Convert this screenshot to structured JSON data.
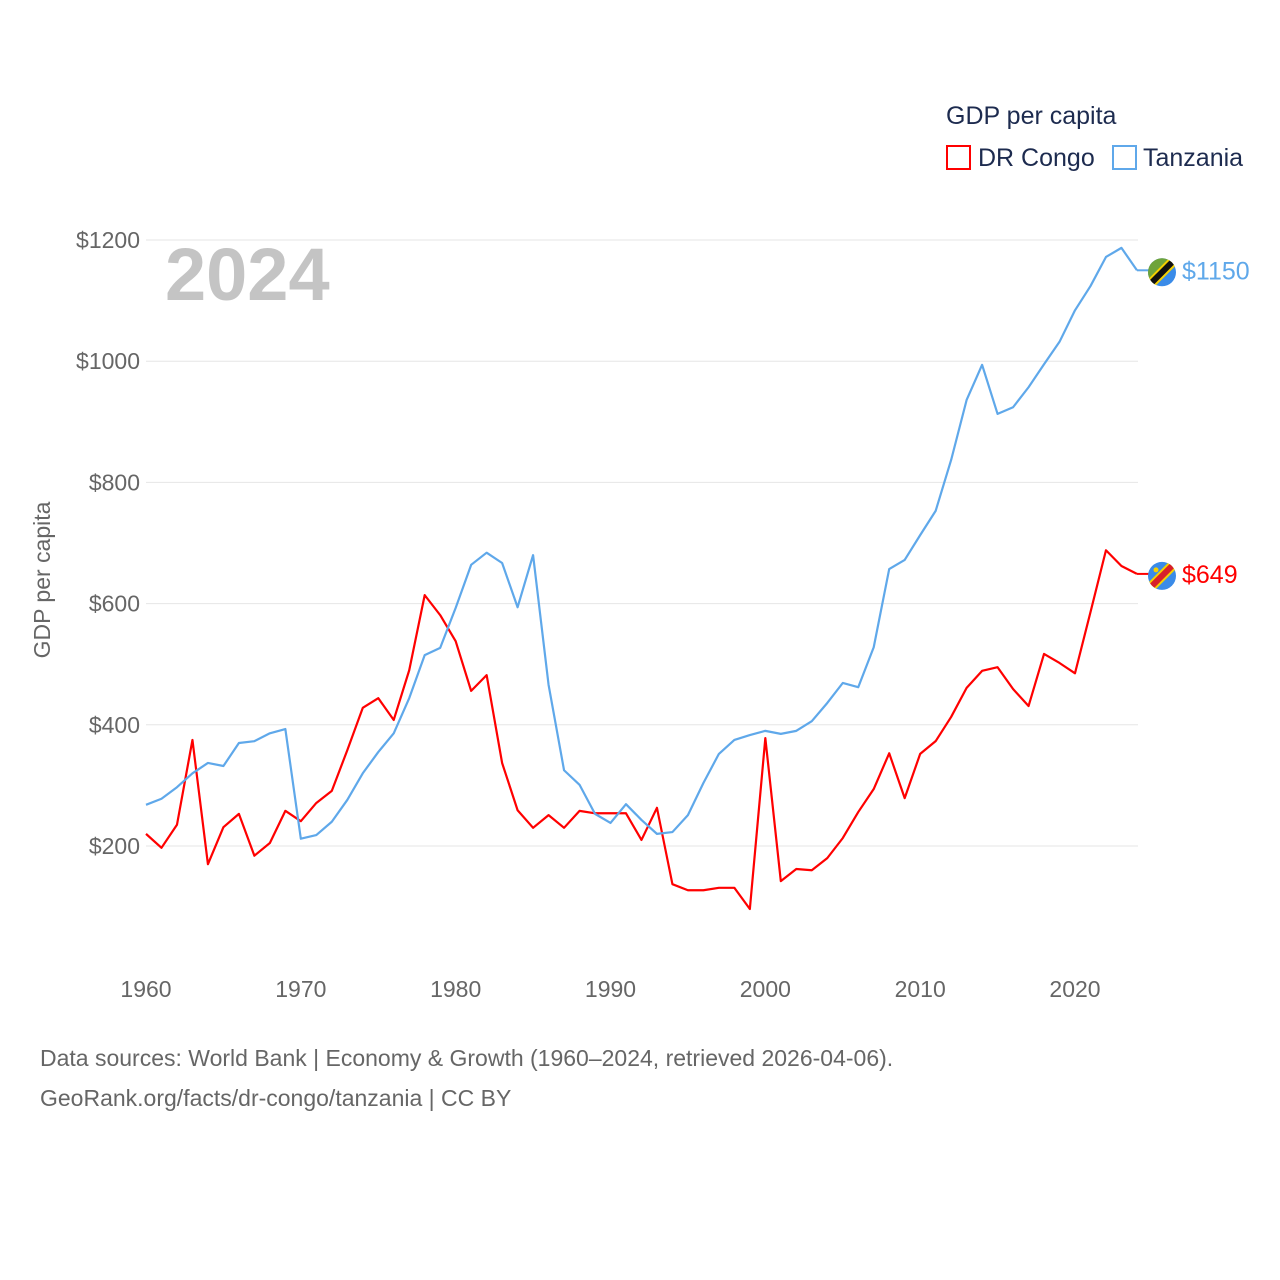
{
  "chart_data": {
    "type": "line",
    "title": "GDP per capita",
    "year_label": "2024",
    "xlabel": "",
    "ylabel": "GDP per capita",
    "xlim": [
      1960,
      2024
    ],
    "ylim": [
      0,
      1250
    ],
    "x_ticks": [
      1960,
      1970,
      1980,
      1990,
      2000,
      2010,
      2020
    ],
    "x_tick_labels": [
      "1960",
      "1970",
      "1980",
      "1990",
      "2000",
      "2010",
      "2020"
    ],
    "y_ticks": [
      200,
      400,
      600,
      800,
      1000,
      1200
    ],
    "y_tick_labels": [
      "$200",
      "$400",
      "$600",
      "$800",
      "$1000",
      "$1200"
    ],
    "grid": true,
    "legend_placement": "top-right",
    "x_start": 1960,
    "series": [
      {
        "name": "DR Congo",
        "color": "#ff0000",
        "end_label": "$649",
        "values": [
          220,
          197,
          235,
          375,
          170,
          231,
          253,
          184,
          205,
          258,
          241,
          271,
          291,
          358,
          428,
          444,
          408,
          490,
          614,
          581,
          538,
          456,
          482,
          337,
          259,
          230,
          251,
          230,
          258,
          254,
          254,
          254,
          210,
          263,
          137,
          127,
          127,
          131,
          131,
          96,
          378,
          142,
          162,
          160,
          180,
          213,
          256,
          294,
          353,
          279,
          352,
          373,
          413,
          461,
          489,
          495,
          459,
          431,
          517,
          502,
          485,
          586,
          688,
          662,
          649
        ]
      },
      {
        "name": "Tanzania",
        "color": "#5fa8ea",
        "end_label": "$1150",
        "values": [
          268,
          278,
          297,
          320,
          337,
          332,
          370,
          373,
          386,
          393,
          212,
          218,
          240,
          276,
          320,
          355,
          386,
          444,
          515,
          527,
          593,
          664,
          684,
          667,
          594,
          680,
          466,
          325,
          301,
          253,
          238,
          269,
          243,
          220,
          223,
          251,
          304,
          352,
          375,
          383,
          390,
          385,
          390,
          406,
          436,
          469,
          462,
          528,
          657,
          672,
          713,
          753,
          837,
          936,
          994,
          913,
          924,
          957,
          995,
          1032,
          1084,
          1124,
          1172,
          1187,
          1150
        ]
      }
    ]
  },
  "footer": {
    "line1": "Data sources: World Bank | Economy & Growth (1960–2024, retrieved 2026-04-06).",
    "line2": "GeoRank.org/facts/dr-congo/tanzania | CC BY"
  }
}
